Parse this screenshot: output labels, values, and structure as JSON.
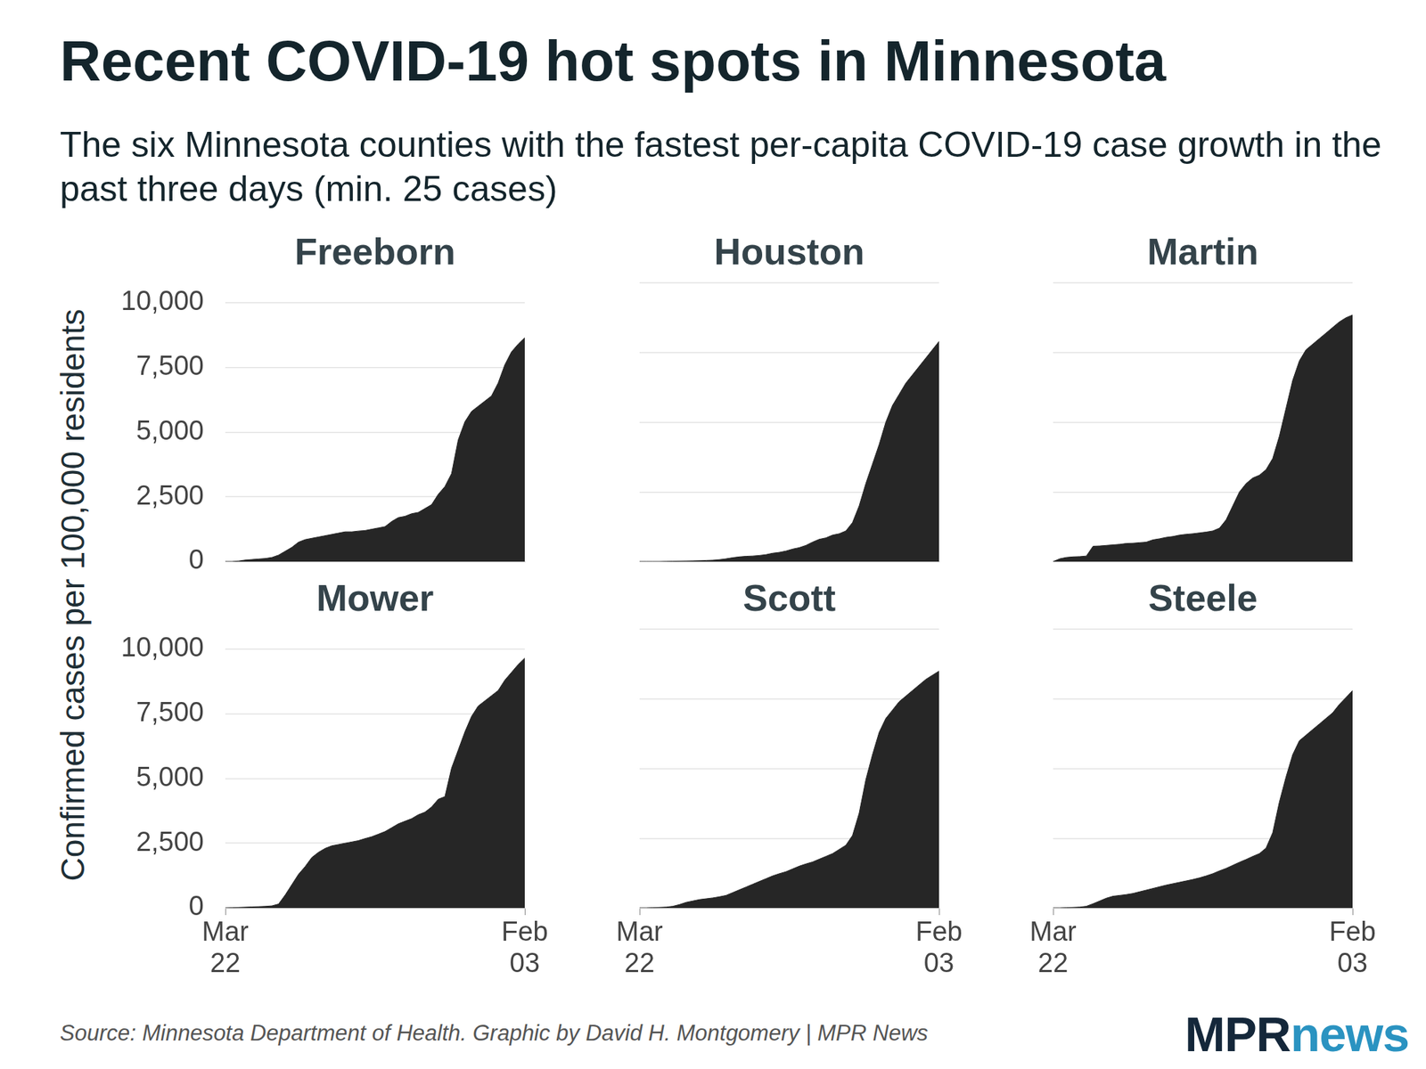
{
  "title": "Recent COVID-19 hot spots in Minnesota",
  "subtitle": "The six Minnesota counties with the fastest per-capita COVID-19 case growth in the past three days (min. 25 cases)",
  "y_label": "Confirmed cases per 100,000 residents",
  "source": "Source: Minnesota Department of Health. Graphic by David H. Montgomery | MPR News",
  "logo": [
    "MPR",
    "news"
  ],
  "chart_data": [
    {
      "type": "area",
      "title": "Freeborn",
      "categories": [
        "Mar 22",
        null,
        null,
        null,
        null,
        null,
        null,
        null,
        null,
        null,
        null,
        null,
        null,
        null,
        null,
        null,
        null,
        null,
        null,
        null,
        null,
        null,
        null,
        null,
        null,
        null,
        null,
        null,
        null,
        null,
        null,
        null,
        null,
        null,
        null,
        null,
        null,
        null,
        null,
        null,
        null,
        null,
        null,
        null,
        null,
        "Feb 03"
      ],
      "values": [
        0,
        0,
        20,
        60,
        80,
        100,
        120,
        160,
        250,
        400,
        550,
        750,
        850,
        900,
        950,
        1000,
        1050,
        1100,
        1150,
        1150,
        1180,
        1200,
        1250,
        1300,
        1350,
        1550,
        1700,
        1750,
        1850,
        1900,
        2050,
        2200,
        2600,
        2900,
        3400,
        4700,
        5400,
        5800,
        6000,
        6200,
        6400,
        6900,
        7600,
        8100,
        8400,
        8650
      ],
      "color": "#262626",
      "ylim": [
        0,
        10000
      ],
      "yticks": [
        0,
        {
          "value": 2500,
          "label": "2,500"
        },
        {
          "value": 5000,
          "label": "5,000"
        },
        {
          "value": 7500,
          "label": "7,500"
        },
        {
          "value": 10000,
          "label": "10,000"
        }
      ],
      "grid": true,
      "tick_labels": "y"
    },
    {
      "type": "area",
      "title": "Houston",
      "categories": [
        "Mar 22",
        null,
        null,
        null,
        null,
        null,
        null,
        null,
        null,
        null,
        null,
        null,
        null,
        null,
        null,
        null,
        null,
        null,
        null,
        null,
        null,
        null,
        null,
        null,
        null,
        null,
        null,
        null,
        null,
        null,
        null,
        null,
        null,
        null,
        null,
        null,
        null,
        null,
        null,
        null,
        null,
        null,
        null,
        null,
        null,
        "Feb 03"
      ],
      "values": [
        0,
        0,
        0,
        0,
        5,
        10,
        15,
        20,
        25,
        30,
        40,
        50,
        70,
        100,
        140,
        170,
        190,
        200,
        220,
        250,
        300,
        330,
        380,
        450,
        500,
        580,
        700,
        800,
        850,
        950,
        1000,
        1100,
        1400,
        2000,
        2800,
        3500,
        4200,
        5000,
        5600,
        6000,
        6400,
        6700,
        7000,
        7300,
        7600,
        7900
      ],
      "color": "#262626",
      "ylim": [
        0,
        10000
      ],
      "yticks": [
        0,
        {
          "value": 2500,
          "label": "2,500"
        },
        {
          "value": 5000,
          "label": "5,000"
        },
        {
          "value": 7500,
          "label": "7,500"
        },
        {
          "value": 10000,
          "label": "10,000"
        }
      ],
      "grid": true,
      "tick_labels": false
    },
    {
      "type": "area",
      "title": "Martin",
      "categories": [
        "Mar 22",
        null,
        null,
        null,
        null,
        null,
        null,
        null,
        null,
        null,
        null,
        null,
        null,
        null,
        null,
        null,
        null,
        null,
        null,
        null,
        null,
        null,
        null,
        null,
        null,
        null,
        null,
        null,
        null,
        null,
        null,
        null,
        null,
        null,
        null,
        null,
        null,
        null,
        null,
        null,
        null,
        null,
        null,
        null,
        null,
        "Feb 03"
      ],
      "values": [
        0,
        100,
        150,
        170,
        180,
        200,
        550,
        560,
        580,
        600,
        620,
        650,
        660,
        680,
        700,
        780,
        820,
        870,
        900,
        950,
        980,
        1000,
        1030,
        1060,
        1100,
        1200,
        1500,
        2000,
        2500,
        2800,
        3000,
        3100,
        3300,
        3700,
        4500,
        5500,
        6500,
        7200,
        7600,
        7800,
        8000,
        8200,
        8400,
        8600,
        8750,
        8850
      ],
      "color": "#262626",
      "ylim": [
        0,
        10000
      ],
      "yticks": [
        0,
        {
          "value": 2500,
          "label": "2,500"
        },
        {
          "value": 5000,
          "label": "5,000"
        },
        {
          "value": 7500,
          "label": "7,500"
        },
        {
          "value": 10000,
          "label": "10,000"
        }
      ],
      "grid": true,
      "tick_labels": false
    },
    {
      "type": "area",
      "title": "Mower",
      "categories": [
        "Mar 22",
        null,
        null,
        null,
        null,
        null,
        null,
        null,
        null,
        null,
        null,
        null,
        null,
        null,
        null,
        null,
        null,
        null,
        null,
        null,
        null,
        null,
        null,
        null,
        null,
        null,
        null,
        null,
        null,
        null,
        null,
        null,
        null,
        null,
        null,
        null,
        null,
        null,
        null,
        null,
        null,
        null,
        null,
        null,
        null,
        "Feb 03"
      ],
      "values": [
        0,
        10,
        20,
        30,
        40,
        50,
        60,
        80,
        150,
        500,
        900,
        1300,
        1600,
        1950,
        2150,
        2300,
        2400,
        2450,
        2500,
        2550,
        2600,
        2680,
        2750,
        2850,
        2950,
        3100,
        3250,
        3350,
        3450,
        3600,
        3700,
        3900,
        4200,
        4300,
        5400,
        6100,
        6800,
        7400,
        7800,
        8000,
        8200,
        8400,
        8800,
        9100,
        9400,
        9650
      ],
      "color": "#262626",
      "ylim": [
        0,
        10000
      ],
      "yticks": [
        0,
        {
          "value": 2500,
          "label": "2,500"
        },
        {
          "value": 5000,
          "label": "5,000"
        },
        {
          "value": 7500,
          "label": "7,500"
        },
        {
          "value": 10000,
          "label": "10,000"
        }
      ],
      "grid": true,
      "tick_labels": true
    },
    {
      "type": "area",
      "title": "Scott",
      "categories": [
        "Mar 22",
        null,
        null,
        null,
        null,
        null,
        null,
        null,
        null,
        null,
        null,
        null,
        null,
        null,
        null,
        null,
        null,
        null,
        null,
        null,
        null,
        null,
        null,
        null,
        null,
        null,
        null,
        null,
        null,
        null,
        null,
        null,
        null,
        null,
        null,
        null,
        null,
        null,
        null,
        null,
        null,
        null,
        null,
        null,
        null,
        "Feb 03"
      ],
      "values": [
        0,
        0,
        10,
        20,
        30,
        60,
        120,
        200,
        250,
        300,
        330,
        360,
        400,
        450,
        550,
        650,
        750,
        850,
        950,
        1050,
        1150,
        1230,
        1300,
        1400,
        1500,
        1580,
        1650,
        1750,
        1850,
        1950,
        2100,
        2250,
        2600,
        3400,
        4600,
        5500,
        6300,
        6800,
        7100,
        7400,
        7600,
        7800,
        8000,
        8200,
        8350,
        8500
      ],
      "color": "#262626",
      "ylim": [
        0,
        10000
      ],
      "yticks": [
        0,
        {
          "value": 2500,
          "label": "2,500"
        },
        {
          "value": 5000,
          "label": "5,000"
        },
        {
          "value": 7500,
          "label": "7,500"
        },
        {
          "value": 10000,
          "label": "10,000"
        }
      ],
      "grid": true,
      "tick_labels": "x"
    },
    {
      "type": "area",
      "title": "Steele",
      "categories": [
        "Mar 22",
        null,
        null,
        null,
        null,
        null,
        null,
        null,
        null,
        null,
        null,
        null,
        null,
        null,
        null,
        null,
        null,
        null,
        null,
        null,
        null,
        null,
        null,
        null,
        null,
        null,
        null,
        null,
        null,
        null,
        null,
        null,
        null,
        null,
        null,
        null,
        null,
        null,
        null,
        null,
        null,
        null,
        null,
        null,
        null,
        "Feb 03"
      ],
      "values": [
        0,
        0,
        10,
        20,
        30,
        60,
        150,
        250,
        350,
        420,
        450,
        480,
        520,
        580,
        640,
        700,
        760,
        820,
        870,
        920,
        970,
        1020,
        1080,
        1150,
        1230,
        1330,
        1420,
        1530,
        1640,
        1740,
        1850,
        1950,
        2150,
        2700,
        3800,
        4700,
        5500,
        6000,
        6200,
        6400,
        6600,
        6800,
        7000,
        7300,
        7550,
        7800
      ],
      "color": "#262626",
      "ylim": [
        0,
        10000
      ],
      "yticks": [
        0,
        {
          "value": 2500,
          "label": "2,500"
        },
        {
          "value": 5000,
          "label": "5,000"
        },
        {
          "value": 7500,
          "label": "7,500"
        },
        {
          "value": 10000,
          "label": "10,000"
        }
      ],
      "grid": true,
      "tick_labels": "x"
    }
  ]
}
